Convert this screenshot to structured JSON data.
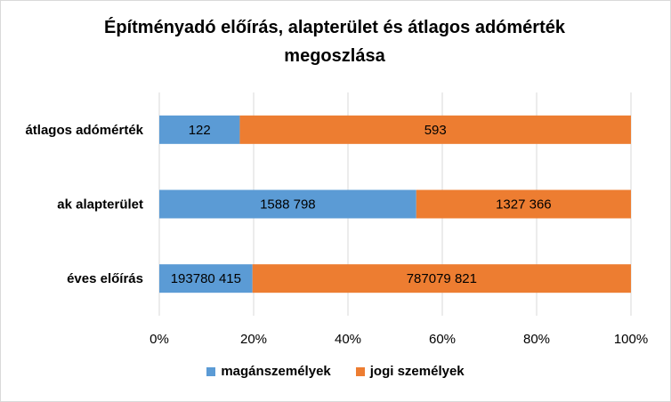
{
  "chart_data": {
    "type": "bar",
    "orientation": "horizontal",
    "stacked": "percent",
    "title": "Építményadó előírás, alapterület és átlagos adómérték megoszlása",
    "categories": [
      "átlagos adómérték",
      "ak alapterület",
      "éves előírás"
    ],
    "series": [
      {
        "name": "magánszemélyek",
        "color": "#5b9bd5",
        "values": [
          122,
          1588798,
          193780415
        ],
        "labels": [
          "122",
          "1588 798",
          "193780 415"
        ]
      },
      {
        "name": "jogi személyek",
        "color": "#ed7d31",
        "values": [
          593,
          1327366,
          787079821
        ],
        "labels": [
          "593",
          "1327 366",
          "787079 821"
        ]
      }
    ],
    "x_ticks": [
      "0%",
      "20%",
      "40%",
      "60%",
      "80%",
      "100%"
    ],
    "xlim": [
      0,
      100
    ],
    "grid": true,
    "legend_position": "bottom"
  }
}
